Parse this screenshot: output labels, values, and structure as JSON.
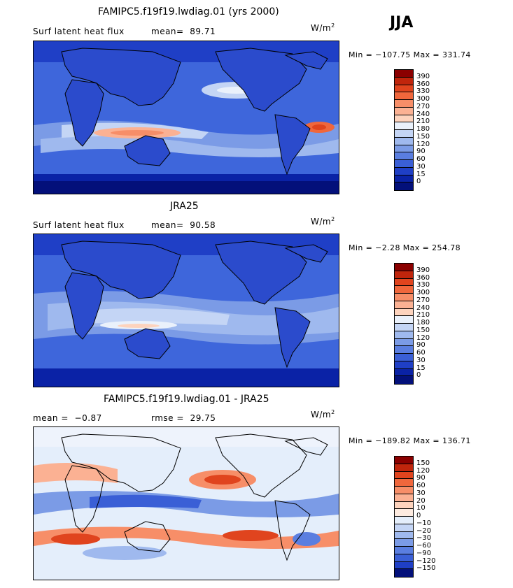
{
  "season": "JJA",
  "panels": [
    {
      "title": "FAMIPC5.f19f19.lwdiag.01 (yrs 2000)",
      "variable": "Surf latent heat flux",
      "mean_label": "mean=",
      "mean_value": "89.71",
      "units_base": "W/m",
      "units_exp": "2",
      "min_label": "Min =",
      "min_value": "−107.75",
      "max_label": "Max =",
      "max_value": "331.74",
      "colorbar": {
        "levels": [
          "390",
          "360",
          "330",
          "300",
          "270",
          "240",
          "210",
          "180",
          "150",
          "120",
          "90",
          "60",
          "30",
          "15",
          "0"
        ],
        "colors": [
          "#8b0000",
          "#c0250c",
          "#e0441e",
          "#f0673c",
          "#f78e68",
          "#fbb193",
          "#fdd3bd",
          "#eaf1fb",
          "#c4d5f5",
          "#9fb9ee",
          "#7b9be6",
          "#5a7ee0",
          "#3a5fd6",
          "#1f3fc6",
          "#0a22a6",
          "#03107a"
        ]
      }
    },
    {
      "title": "JRA25",
      "variable": "Surf latent heat flux",
      "mean_label": "mean=",
      "mean_value": "90.58",
      "units_base": "W/m",
      "units_exp": "2",
      "min_label": "Min =",
      "min_value": "−2.28",
      "max_label": "Max =",
      "max_value": "254.78",
      "colorbar": {
        "levels": [
          "390",
          "360",
          "330",
          "300",
          "270",
          "240",
          "210",
          "180",
          "150",
          "120",
          "90",
          "60",
          "30",
          "15",
          "0"
        ],
        "colors": [
          "#8b0000",
          "#c0250c",
          "#e0441e",
          "#f0673c",
          "#f78e68",
          "#fbb193",
          "#fdd3bd",
          "#eaf1fb",
          "#c4d5f5",
          "#9fb9ee",
          "#7b9be6",
          "#5a7ee0",
          "#3a5fd6",
          "#1f3fc6",
          "#0a22a6",
          "#03107a"
        ]
      }
    },
    {
      "title": "FAMIPC5.f19f19.lwdiag.01 - JRA25",
      "mean_label": "mean =",
      "mean_value": "−0.87",
      "rmse_label": "rmse =",
      "rmse_value": "29.75",
      "units_base": "W/m",
      "units_exp": "2",
      "min_label": "Min =",
      "min_value": "−189.82",
      "max_label": "Max =",
      "max_value": "136.71",
      "colorbar": {
        "levels": [
          "150",
          "120",
          "90",
          "60",
          "30",
          "20",
          "10",
          "0",
          "−10",
          "−20",
          "−30",
          "−60",
          "−90",
          "−120",
          "−150"
        ],
        "colors": [
          "#8b0000",
          "#c0250c",
          "#e0441e",
          "#f0673c",
          "#f78e68",
          "#fbb193",
          "#fdd3bd",
          "#fdebe0",
          "#e4eefb",
          "#c4d5f5",
          "#9fb9ee",
          "#7b9be6",
          "#5a7ee0",
          "#3a5fd6",
          "#1f3fc6",
          "#03107a"
        ]
      }
    }
  ],
  "chart_data": [
    {
      "type": "heatmap",
      "title": "FAMIPC5.f19f19.lwdiag.01 (yrs 2000)",
      "subtitle": "Surf latent heat flux",
      "units": "W/m2",
      "season": "JJA",
      "mean": 89.71,
      "min": -107.75,
      "max": 331.74,
      "contour_levels": [
        0,
        15,
        30,
        60,
        90,
        120,
        150,
        180,
        210,
        240,
        270,
        300,
        330,
        360,
        390
      ]
    },
    {
      "type": "heatmap",
      "title": "JRA25",
      "subtitle": "Surf latent heat flux",
      "units": "W/m2",
      "season": "JJA",
      "mean": 90.58,
      "min": -2.28,
      "max": 254.78,
      "contour_levels": [
        0,
        15,
        30,
        60,
        90,
        120,
        150,
        180,
        210,
        240,
        270,
        300,
        330,
        360,
        390
      ]
    },
    {
      "type": "heatmap",
      "title": "FAMIPC5.f19f19.lwdiag.01 - JRA25",
      "units": "W/m2",
      "season": "JJA",
      "mean": -0.87,
      "rmse": 29.75,
      "min": -189.82,
      "max": 136.71,
      "contour_levels": [
        -150,
        -120,
        -90,
        -60,
        -30,
        -20,
        -10,
        0,
        10,
        20,
        30,
        60,
        90,
        120,
        150
      ]
    }
  ]
}
